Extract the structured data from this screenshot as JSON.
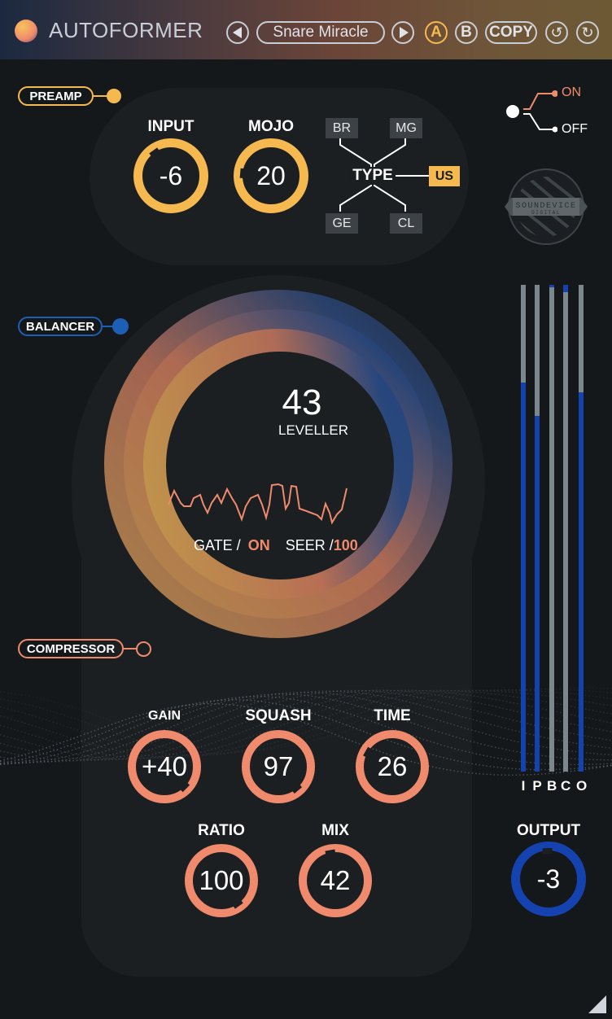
{
  "header": {
    "title": "AUTOFORMER",
    "preset": "Snare Miracle",
    "prev_icon": "triangle-left",
    "next_icon": "triangle-right",
    "a_label": "A",
    "b_label": "B",
    "copy_label": "COPY",
    "undo_icon": "undo",
    "redo_icon": "redo"
  },
  "colors": {
    "preamp": "#f5b94f",
    "balancer": "#1d5fb5",
    "compressor": "#f08a6c",
    "meter_fill": "#1443b0",
    "meter_bg": "#7b878d"
  },
  "preamp": {
    "label": "PREAMP",
    "input": {
      "label": "INPUT",
      "value": "-6"
    },
    "mojo": {
      "label": "MOJO",
      "value": "20"
    },
    "type": {
      "label": "TYPE",
      "options": [
        "BR",
        "MG",
        "GE",
        "CL",
        "US"
      ],
      "selected": "US"
    }
  },
  "power": {
    "on": "ON",
    "off": "OFF",
    "state": "ON"
  },
  "brand": {
    "logo_text": "SOUNDEVICE DIGITAL"
  },
  "balancer": {
    "label": "BALANCER",
    "leveller_value": "43",
    "leveller_label": "LEVELLER",
    "gate_label": "GATE /",
    "gate_value": "ON",
    "seer_label": "SEER /",
    "seer_value": "100"
  },
  "compressor": {
    "label": "COMPRESSOR",
    "knobs": [
      {
        "label": "GAIN",
        "value": "+40"
      },
      {
        "label": "SQUASH",
        "value": "97"
      },
      {
        "label": "TIME",
        "value": "26"
      },
      {
        "label": "RATIO",
        "value": "100"
      },
      {
        "label": "MIX",
        "value": "42"
      }
    ]
  },
  "meters": [
    {
      "label": "I",
      "level": 0.8
    },
    {
      "label": "P",
      "level": 0.73
    },
    {
      "label": "B",
      "level": 0.0,
      "reduction": 0.005
    },
    {
      "label": "C",
      "level": 0.0,
      "reduction": 0.015
    },
    {
      "label": "O",
      "level": 0.78
    }
  ],
  "output": {
    "label": "OUTPUT",
    "value": "-3"
  }
}
